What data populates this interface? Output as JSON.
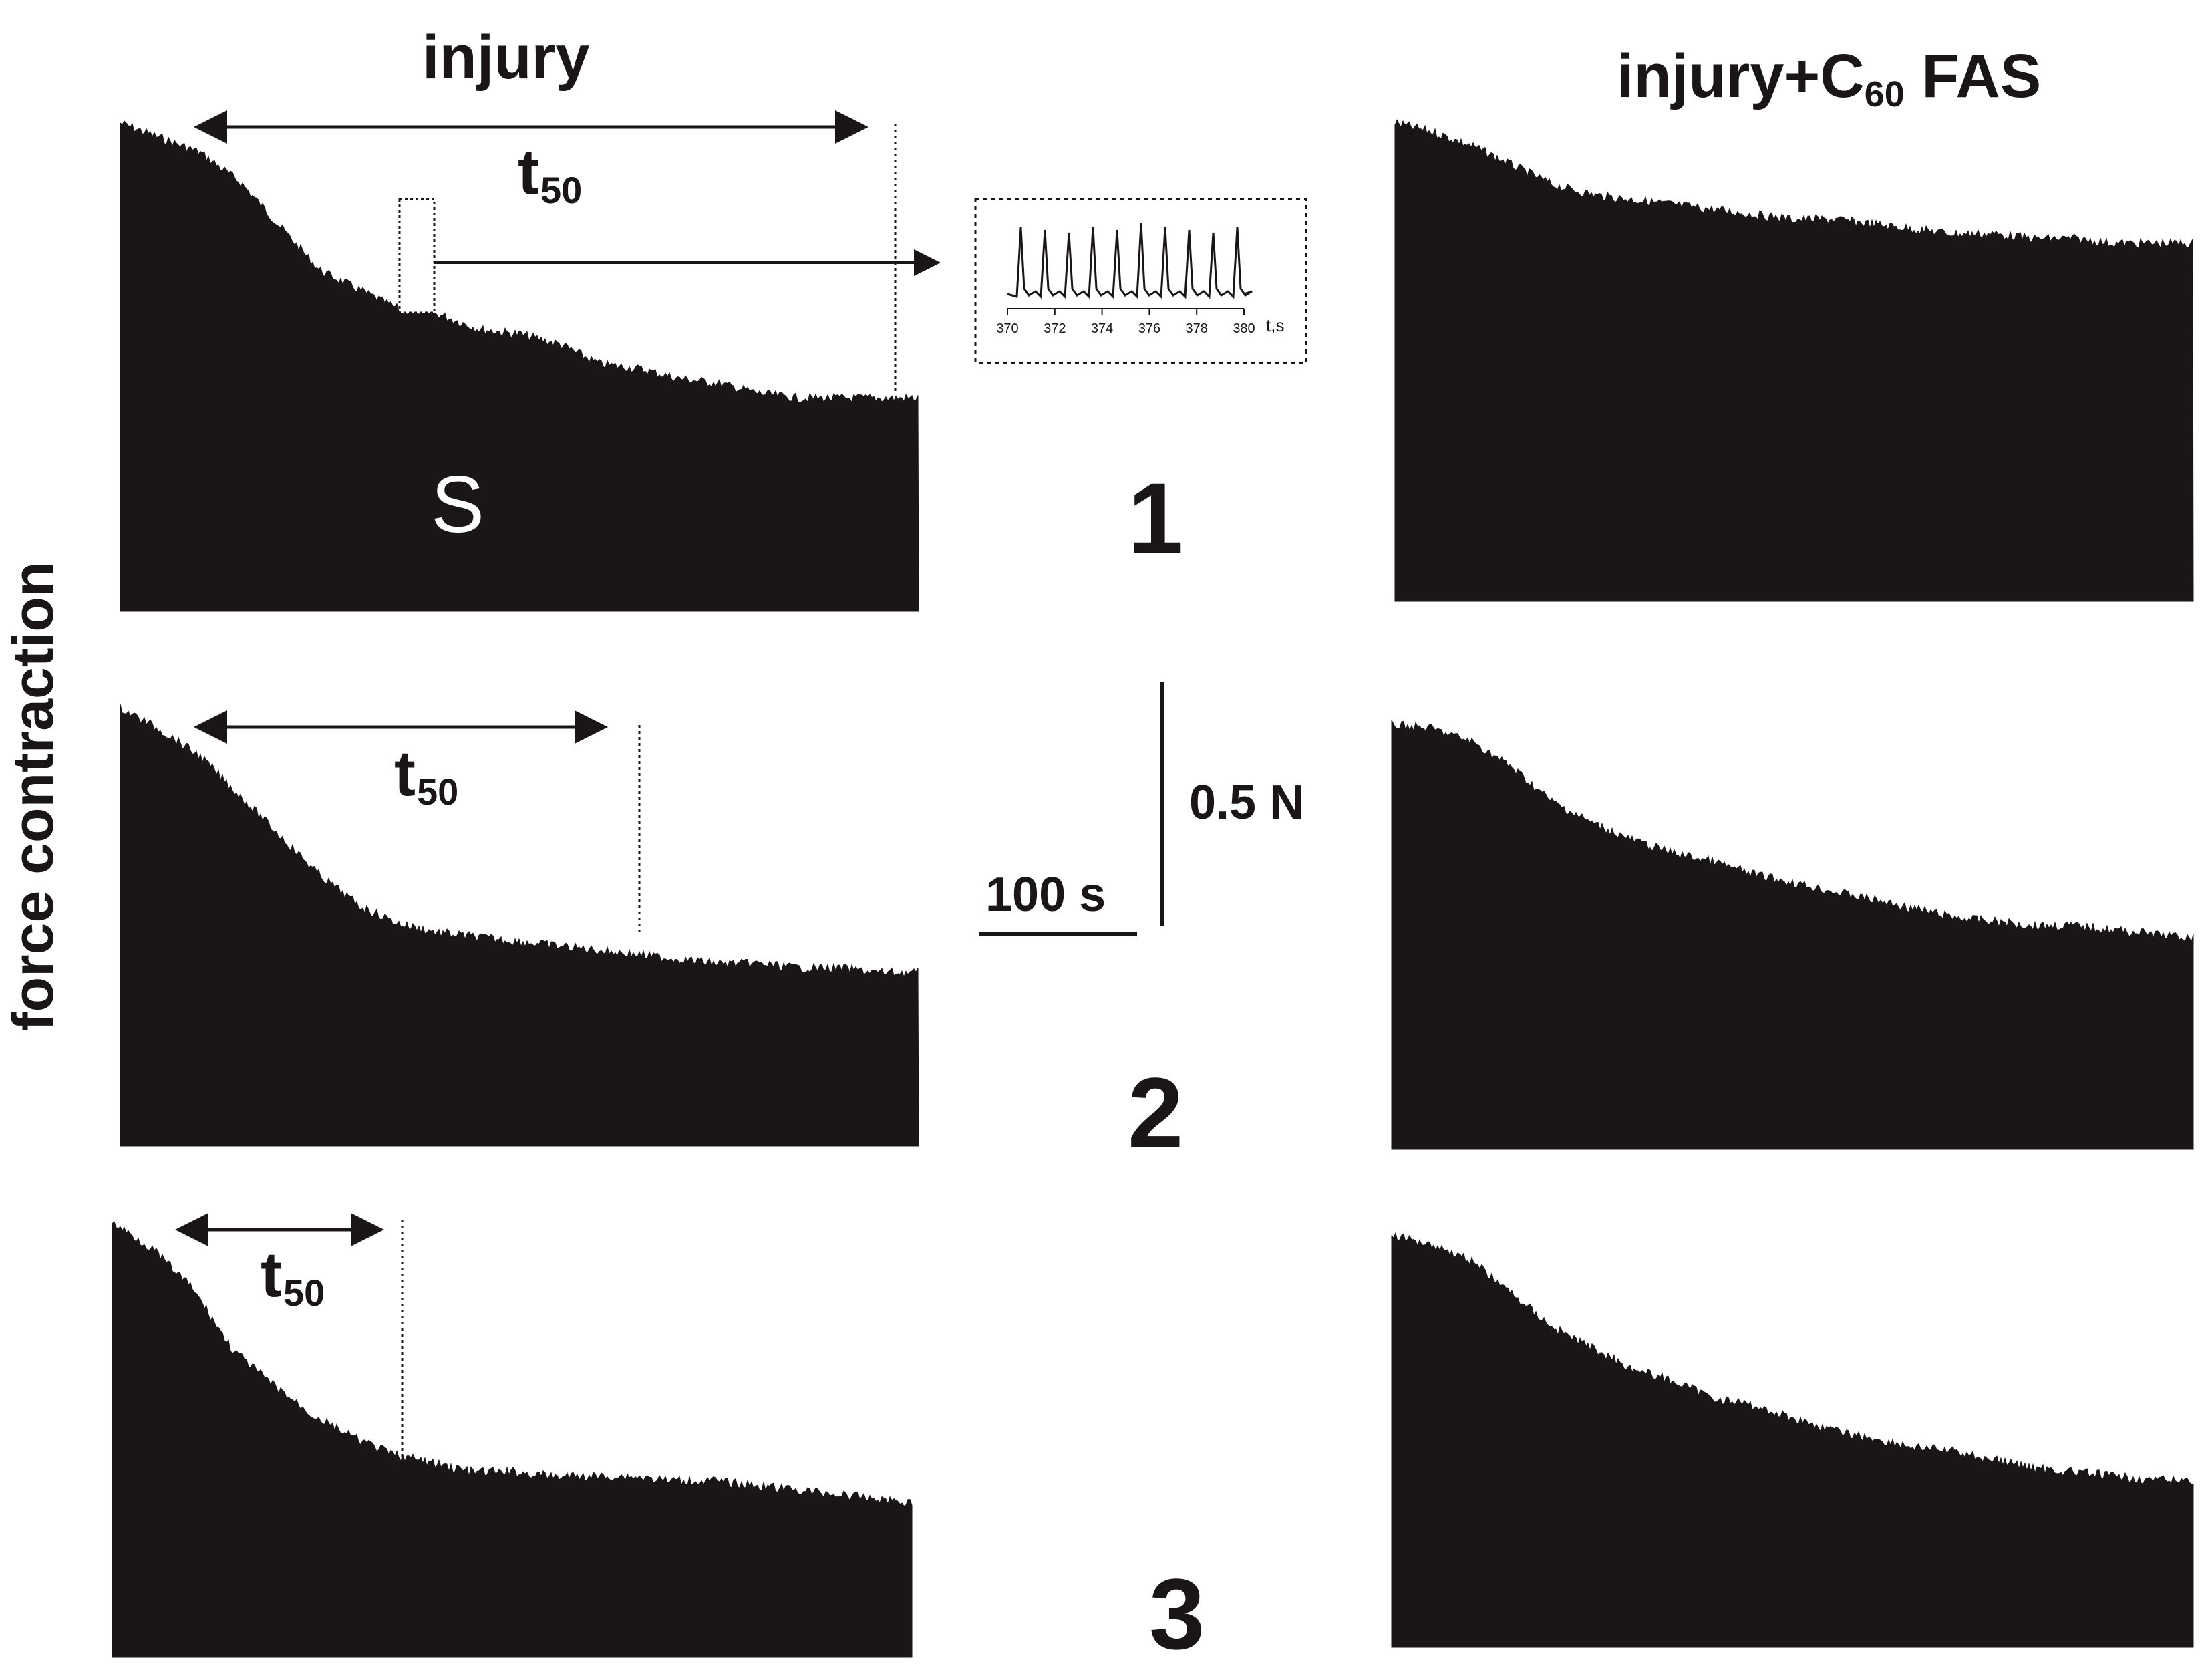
{
  "titles": {
    "left": "injury",
    "right_main": "injury+C",
    "right_sub": "60",
    "right_tail": " FAS"
  },
  "y_axis_label": "force contraction",
  "row_labels": [
    "1",
    "2",
    "3"
  ],
  "t50_label": {
    "main": "t",
    "sub": "50"
  },
  "segment_label": "S",
  "scale_bar": {
    "force": "0.5 N",
    "time": "100 s"
  },
  "inset": {
    "tick_labels": [
      "370",
      "372",
      "374",
      "376",
      "378",
      "380"
    ],
    "unit": "t,s"
  },
  "colors": {
    "trace": "#1a1617",
    "background": "#ffffff"
  },
  "chart_data": [
    {
      "type": "area",
      "panel": "injury 1",
      "x_rel": [
        0,
        0.05,
        0.1,
        0.15,
        0.2,
        0.25,
        0.3,
        0.35,
        0.4,
        0.45,
        0.5,
        0.55,
        0.6,
        0.65,
        0.7,
        0.75,
        0.8,
        0.85,
        0.9,
        0.95,
        1.0
      ],
      "y_rel": [
        1.0,
        0.97,
        0.94,
        0.88,
        0.79,
        0.7,
        0.66,
        0.62,
        0.61,
        0.58,
        0.57,
        0.55,
        0.51,
        0.5,
        0.48,
        0.47,
        0.45,
        0.44,
        0.44,
        0.44,
        0.44
      ]
    },
    {
      "type": "area",
      "panel": "injury+C60 FAS 1",
      "x_rel": [
        0,
        0.05,
        0.1,
        0.15,
        0.2,
        0.25,
        0.3,
        0.35,
        0.4,
        0.45,
        0.5,
        0.55,
        0.6,
        0.65,
        0.7,
        0.75,
        0.8,
        0.85,
        0.9,
        0.95,
        1.0
      ],
      "y_rel": [
        1.0,
        0.98,
        0.95,
        0.91,
        0.87,
        0.85,
        0.84,
        0.83,
        0.82,
        0.81,
        0.8,
        0.8,
        0.79,
        0.78,
        0.77,
        0.77,
        0.76,
        0.76,
        0.75,
        0.75,
        0.75
      ]
    },
    {
      "type": "area",
      "panel": "injury 2",
      "x_rel": [
        0,
        0.05,
        0.1,
        0.15,
        0.2,
        0.25,
        0.3,
        0.35,
        0.4,
        0.45,
        0.5,
        0.55,
        0.6,
        0.65,
        0.7,
        0.75,
        0.8,
        0.85,
        0.9,
        0.95,
        1.0
      ],
      "y_rel": [
        1.0,
        0.95,
        0.89,
        0.8,
        0.71,
        0.62,
        0.55,
        0.51,
        0.49,
        0.48,
        0.47,
        0.46,
        0.45,
        0.44,
        0.43,
        0.42,
        0.42,
        0.41,
        0.41,
        0.4,
        0.4
      ]
    },
    {
      "type": "area",
      "panel": "injury+C60 FAS 2",
      "x_rel": [
        0,
        0.05,
        0.1,
        0.15,
        0.2,
        0.25,
        0.3,
        0.35,
        0.4,
        0.45,
        0.5,
        0.55,
        0.6,
        0.65,
        0.7,
        0.75,
        0.8,
        0.85,
        0.9,
        0.95,
        1.0
      ],
      "y_rel": [
        1.0,
        0.99,
        0.96,
        0.9,
        0.82,
        0.77,
        0.73,
        0.7,
        0.68,
        0.65,
        0.63,
        0.61,
        0.59,
        0.57,
        0.55,
        0.54,
        0.53,
        0.53,
        0.52,
        0.51,
        0.5
      ]
    },
    {
      "type": "area",
      "panel": "injury 3",
      "x_rel": [
        0,
        0.05,
        0.1,
        0.15,
        0.2,
        0.25,
        0.3,
        0.35,
        0.4,
        0.45,
        0.5,
        0.55,
        0.6,
        0.65,
        0.7,
        0.75,
        0.8,
        0.85,
        0.9,
        0.95,
        1.0
      ],
      "y_rel": [
        1.0,
        0.94,
        0.85,
        0.71,
        0.63,
        0.56,
        0.51,
        0.47,
        0.45,
        0.43,
        0.43,
        0.42,
        0.42,
        0.42,
        0.41,
        0.41,
        0.4,
        0.39,
        0.38,
        0.37,
        0.36
      ]
    },
    {
      "type": "area",
      "panel": "injury+C60 FAS 3",
      "x_rel": [
        0,
        0.05,
        0.1,
        0.15,
        0.2,
        0.25,
        0.3,
        0.35,
        0.4,
        0.45,
        0.5,
        0.55,
        0.6,
        0.65,
        0.7,
        0.75,
        0.8,
        0.85,
        0.9,
        0.95,
        1.0
      ],
      "y_rel": [
        1.0,
        0.98,
        0.94,
        0.86,
        0.78,
        0.73,
        0.68,
        0.65,
        0.61,
        0.59,
        0.56,
        0.53,
        0.51,
        0.49,
        0.48,
        0.46,
        0.44,
        0.43,
        0.42,
        0.41,
        0.41
      ]
    },
    {
      "type": "line",
      "panel": "inset (twitch detail, 370–380 s)",
      "x": [
        370,
        380
      ],
      "peaks": 10
    }
  ]
}
